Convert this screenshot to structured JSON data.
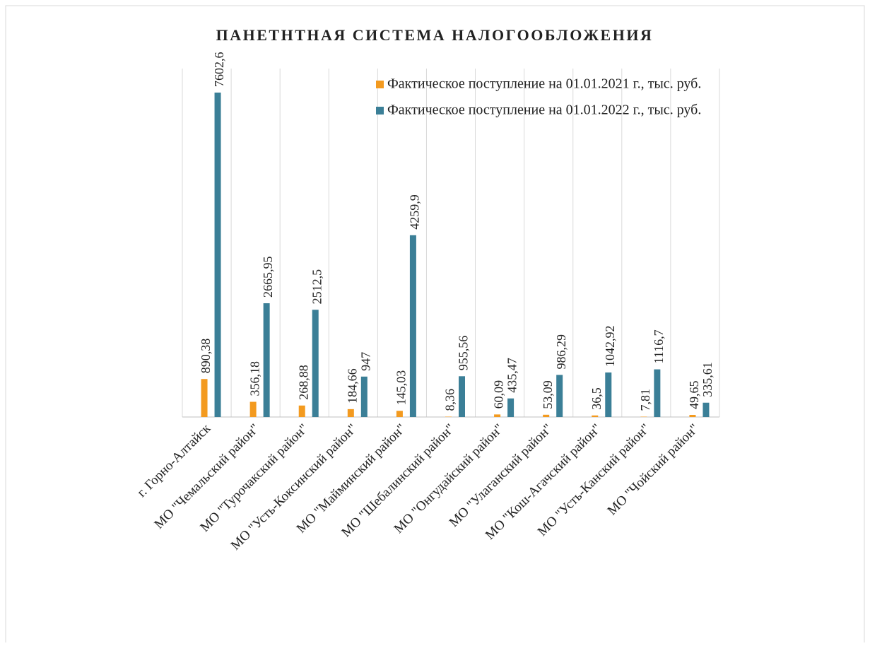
{
  "chart_data": {
    "type": "bar",
    "title": "ПАНЕТНТНАЯ СИСТЕМА НАЛОГООБЛОЖЕНИЯ",
    "categories": [
      "г. Горно-Алтайск",
      "МО \"Чемальский район\"",
      "МО \"Турочакский район\"",
      "МО \"Усть-Коксинский район\"",
      "МО \"Майминский район\"",
      "МО \"Шебалинский район\"",
      "МО \"Онгудайский район\"",
      "МО \"Улаганский район\"",
      "МО \"Кош-Агачский район\"",
      "МО \"Усть-Канский район\"",
      "МО \"Чойский район\""
    ],
    "series": [
      {
        "name": "Фактическое поступление на 01.01.2021 г., тыс. руб.",
        "color": "#f39a1f",
        "values": [
          890.38,
          356.18,
          268.88,
          184.66,
          145.03,
          8.36,
          60.09,
          53.09,
          36.5,
          7.81,
          49.65
        ],
        "value_labels": [
          "890,38",
          "356,18",
          "268,88",
          "184,66",
          "145,03",
          "8,36",
          "60,09",
          "53,09",
          "36,5",
          "7,81",
          "49,65"
        ]
      },
      {
        "name": "Фактическое поступление на 01.01.2022 г., тыс. руб.",
        "color": "#3b7f97",
        "values": [
          7602.6,
          2665.95,
          2512.5,
          947,
          4259.9,
          955.56,
          435.47,
          986.29,
          1042.92,
          1116.7,
          335.61
        ],
        "value_labels": [
          "7602,6",
          "2665,95",
          "2512,5",
          "947",
          "4259,9",
          "955,56",
          "435,47",
          "986,29",
          "1042,92",
          "1116,7",
          "335,61"
        ]
      }
    ],
    "ylim": [
      0,
      8000
    ],
    "legend": "top-right"
  }
}
